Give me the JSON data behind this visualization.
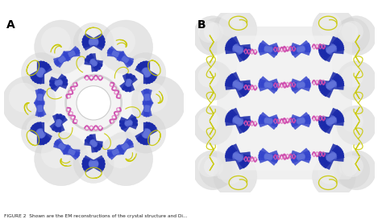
{
  "figure_width": 4.74,
  "figure_height": 2.72,
  "dpi": 100,
  "bg_color": "#ffffff",
  "label_A": "A",
  "label_B": "B",
  "caption": "FIGURE 2  Shown are the EM reconstructions of the crystal structure and Di...",
  "colors": {
    "blue_dark": "#1a2aaa",
    "blue_mid": "#3344cc",
    "blue_light": "#6677dd",
    "yellow": "#c8c800",
    "yellow2": "#d4d400",
    "pink": "#cc44aa",
    "pink2": "#dd66bb",
    "gray_surface": "#d5d5d5",
    "gray_surface2": "#e0e0e0",
    "gray_inner": "#e8e8e8",
    "white": "#ffffff",
    "label_color": "#000000",
    "near_white": "#f5f5f5"
  },
  "panel_A_symmetry": 6,
  "panel_B_layers": 4
}
